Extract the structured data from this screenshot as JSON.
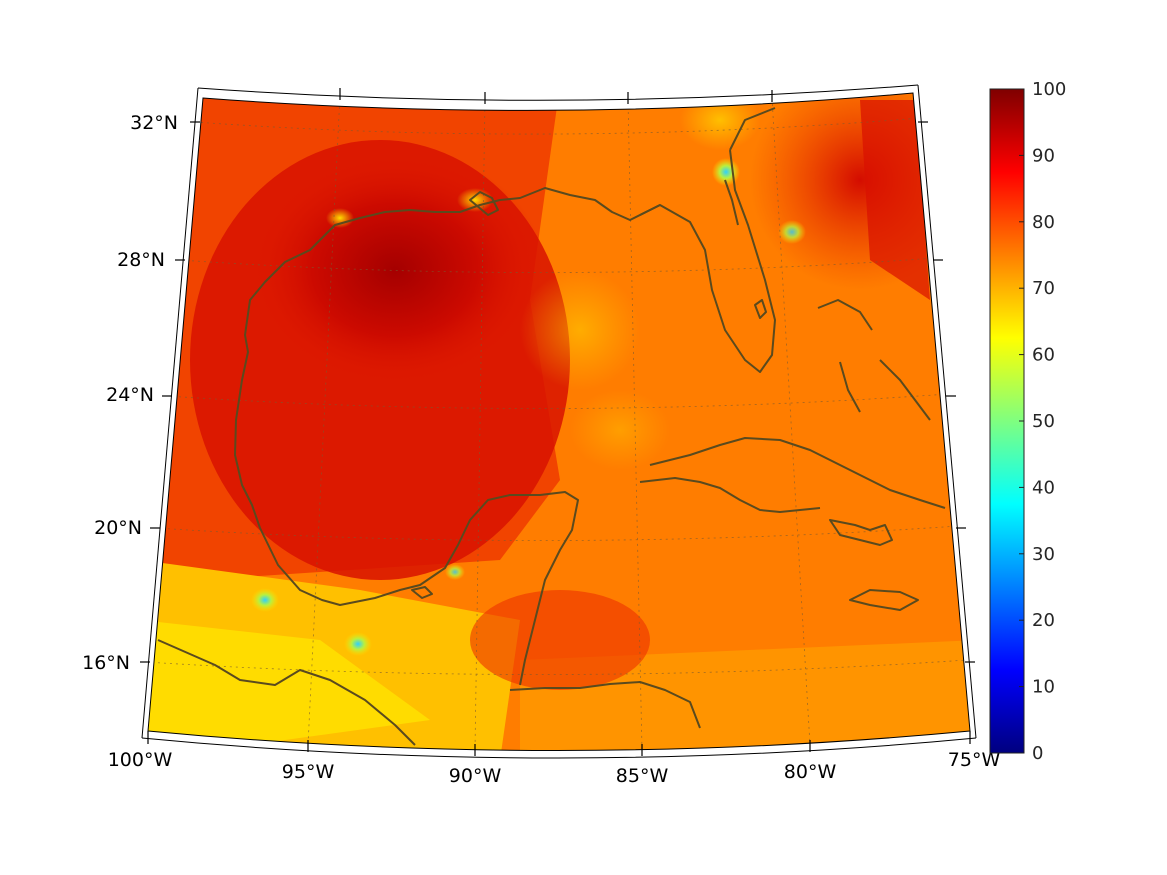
{
  "map": {
    "type": "filled-field-map",
    "projection": "conic",
    "region": "Gulf of Mexico and Caribbean",
    "lon_range": [
      -100,
      -75
    ],
    "lat_range": [
      14,
      33
    ],
    "lon_ticks": [
      {
        "value": -100,
        "label": "100°W"
      },
      {
        "value": -95,
        "label": "95°W"
      },
      {
        "value": -90,
        "label": "90°W"
      },
      {
        "value": -85,
        "label": "85°W"
      },
      {
        "value": -80,
        "label": "80°W"
      },
      {
        "value": -75,
        "label": "75°W"
      }
    ],
    "lat_ticks": [
      {
        "value": 32,
        "label": "32°N"
      },
      {
        "value": 28,
        "label": "28°N"
      },
      {
        "value": 24,
        "label": "24°N"
      },
      {
        "value": 20,
        "label": "20°N"
      },
      {
        "value": 16,
        "label": "16°N"
      }
    ],
    "grid": true,
    "coastline_color": "#5a4a1e",
    "field_peak_region": "central Gulf of Mexico",
    "field_peak_approx": 95
  },
  "colorbar": {
    "colormap": "jet",
    "range": [
      0,
      100
    ],
    "ticks": [
      "0",
      "10",
      "20",
      "30",
      "40",
      "50",
      "60",
      "70",
      "80",
      "90",
      "100"
    ],
    "placement": "right"
  }
}
